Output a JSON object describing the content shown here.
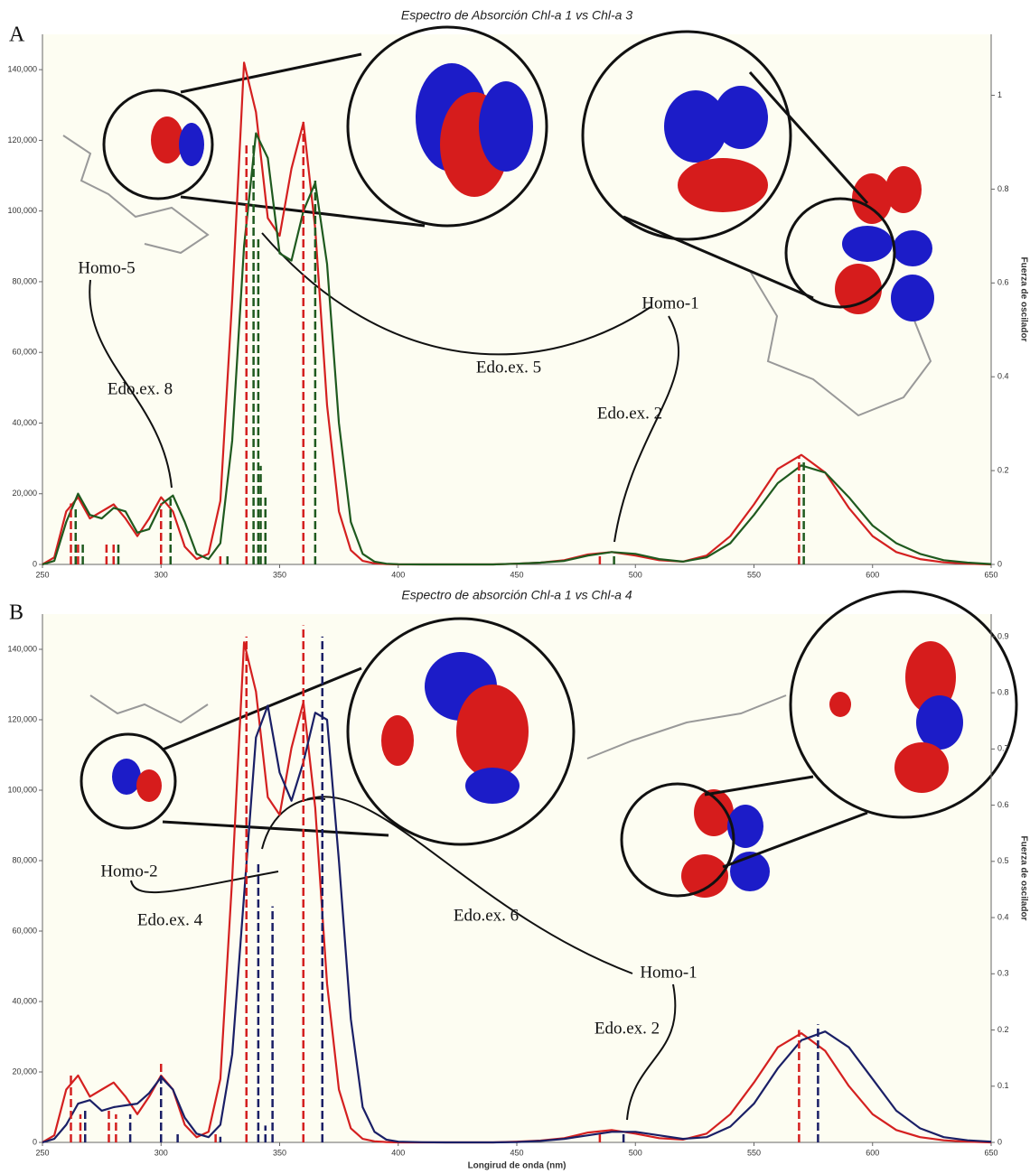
{
  "chart_data": [
    {
      "type": "line",
      "panel": "A",
      "title": "Espectro de Absorción Chl-a 1 vs Chl-a 3",
      "y2label": "Fuerza de oscilador",
      "x": [
        250,
        255,
        260,
        265,
        270,
        275,
        280,
        285,
        290,
        295,
        300,
        305,
        310,
        315,
        320,
        325,
        330,
        335,
        340,
        345,
        350,
        355,
        360,
        365,
        370,
        375,
        380,
        385,
        390,
        395,
        400,
        410,
        420,
        430,
        440,
        450,
        460,
        470,
        480,
        490,
        500,
        510,
        520,
        530,
        540,
        550,
        560,
        570,
        580,
        590,
        600,
        610,
        620,
        630,
        640,
        650
      ],
      "series": [
        {
          "color": "#d42020",
          "values": [
            0,
            2000,
            15000,
            19000,
            13000,
            15000,
            17000,
            13000,
            8000,
            13000,
            19000,
            15000,
            5000,
            1500,
            3000,
            18000,
            75000,
            142000,
            128000,
            98000,
            93000,
            112000,
            125000,
            95000,
            45000,
            15000,
            4000,
            1000,
            300,
            100,
            0,
            0,
            0,
            0,
            0,
            200,
            500,
            1200,
            2800,
            3500,
            2500,
            1200,
            800,
            2500,
            8000,
            17000,
            27000,
            31000,
            26000,
            16000,
            8000,
            3500,
            1500,
            600,
            200,
            0
          ]
        },
        {
          "color": "#1f5a1f",
          "values": [
            0,
            1000,
            12000,
            20000,
            14000,
            13000,
            16000,
            15000,
            9000,
            10000,
            17000,
            19500,
            12000,
            3000,
            1500,
            6000,
            35000,
            90000,
            122000,
            115000,
            88000,
            86000,
            100000,
            108000,
            85000,
            40000,
            12000,
            3000,
            800,
            200,
            50,
            0,
            0,
            0,
            0,
            200,
            500,
            1000,
            2500,
            3500,
            3000,
            1500,
            800,
            2000,
            6000,
            14000,
            23000,
            28000,
            26000,
            19000,
            11000,
            6000,
            3000,
            1200,
            500,
            100
          ]
        },
        {
          "color": "#d42020",
          "axis": "y2",
          "style": "dashed",
          "x": [
            262,
            265,
            277,
            280,
            300,
            325,
            336,
            360,
            485,
            569
          ],
          "values": [
            0.13,
            0.05,
            0.05,
            0.05,
            0.13,
            0.02,
            0.9,
            0.95,
            0.02,
            0.23
          ]
        },
        {
          "color": "#1f5a1f",
          "axis": "y2",
          "style": "dashed",
          "x": [
            264,
            267,
            282,
            304,
            328,
            339,
            341,
            342,
            344,
            365,
            491,
            571
          ],
          "values": [
            0.12,
            0.05,
            0.05,
            0.14,
            0.02,
            0.9,
            0.7,
            0.21,
            0.15,
            0.82,
            0.02,
            0.22
          ]
        }
      ],
      "xlim": [
        250,
        650
      ],
      "xticks": [
        250,
        300,
        350,
        400,
        450,
        500,
        550,
        600,
        650
      ],
      "ylim": [
        0,
        150000
      ],
      "yticks": [
        0,
        {
          "value": 20000,
          "label": "20,000"
        },
        {
          "value": 40000,
          "label": "40,000"
        },
        {
          "value": 60000,
          "label": "60,000"
        },
        {
          "value": 80000,
          "label": "80,000"
        },
        {
          "value": 100000,
          "label": "100,000"
        },
        {
          "value": 120000,
          "label": "120,000"
        },
        {
          "value": 140000,
          "label": "140,000"
        }
      ],
      "y2lim": [
        0,
        1.13
      ],
      "y2ticks": [
        0,
        0.2,
        0.4,
        0.6,
        0.8,
        1
      ],
      "annotations": [
        "Homo-5",
        "Edo.ex. 8",
        "Edo.ex. 5",
        "Homo-1",
        "Edo.ex. 2"
      ]
    },
    {
      "type": "line",
      "panel": "B",
      "title": "Espectro de absorción Chl-a 1 vs Chl-a 4",
      "y2label": "Fuerza de oscilador",
      "xlabel": "Longirud de onda (nm)",
      "x": [
        250,
        255,
        260,
        265,
        270,
        275,
        280,
        285,
        290,
        295,
        300,
        305,
        310,
        315,
        320,
        325,
        330,
        335,
        340,
        345,
        350,
        355,
        360,
        365,
        370,
        375,
        380,
        385,
        390,
        395,
        400,
        410,
        420,
        430,
        440,
        450,
        460,
        470,
        480,
        490,
        500,
        510,
        520,
        530,
        540,
        550,
        560,
        570,
        580,
        590,
        600,
        610,
        620,
        630,
        640,
        650
      ],
      "series": [
        {
          "color": "#d42020",
          "values": [
            0,
            2000,
            15000,
            19000,
            13000,
            15000,
            17000,
            13000,
            8000,
            13000,
            19000,
            15000,
            5000,
            1500,
            3000,
            18000,
            75000,
            142000,
            128000,
            98000,
            93000,
            112000,
            125000,
            95000,
            45000,
            15000,
            4000,
            1000,
            300,
            100,
            0,
            0,
            0,
            0,
            0,
            200,
            500,
            1200,
            2800,
            3500,
            2500,
            1200,
            800,
            2500,
            8000,
            17000,
            27000,
            31000,
            26000,
            16000,
            8000,
            3500,
            1500,
            600,
            200,
            0
          ]
        },
        {
          "color": "#1a1f66",
          "values": [
            0,
            1000,
            5000,
            11000,
            12000,
            9000,
            10000,
            10500,
            11000,
            14000,
            18500,
            15000,
            7000,
            2500,
            1500,
            5000,
            25000,
            70000,
            115000,
            124000,
            105000,
            97000,
            108000,
            122000,
            120000,
            80000,
            35000,
            10000,
            3000,
            800,
            200,
            50,
            0,
            0,
            0,
            100,
            400,
            1000,
            2000,
            3000,
            3000,
            2000,
            1000,
            1500,
            4500,
            11000,
            21000,
            29000,
            31500,
            27000,
            18000,
            9000,
            4000,
            1500,
            600,
            200
          ]
        },
        {
          "color": "#d42020",
          "axis": "y2",
          "style": "dashed",
          "x": [
            262,
            266,
            278,
            281,
            300,
            323,
            336,
            360,
            485,
            569
          ],
          "values": [
            0.12,
            0.05,
            0.06,
            0.05,
            0.14,
            0.02,
            0.9,
            0.92,
            0.02,
            0.2
          ]
        },
        {
          "color": "#1a1f66",
          "axis": "y2",
          "style": "dashed",
          "x": [
            268,
            287,
            300,
            307,
            325,
            341,
            344,
            347,
            368,
            495,
            577
          ],
          "values": [
            0.06,
            0.05,
            0.12,
            0.02,
            0.01,
            0.5,
            0.03,
            0.42,
            0.9,
            0.02,
            0.21
          ]
        }
      ],
      "xlim": [
        250,
        650
      ],
      "xticks": [
        250,
        300,
        350,
        400,
        450,
        500,
        550,
        600,
        650
      ],
      "ylim": [
        0,
        150000
      ],
      "yticks": [
        0,
        {
          "value": 20000,
          "label": "20,000"
        },
        {
          "value": 40000,
          "label": "40,000"
        },
        {
          "value": 60000,
          "label": "60,000"
        },
        {
          "value": 80000,
          "label": "80,000"
        },
        {
          "value": 100000,
          "label": "100,000"
        },
        {
          "value": 120000,
          "label": "120,000"
        },
        {
          "value": 140000,
          "label": "140,000"
        }
      ],
      "y2lim": [
        0,
        0.94
      ],
      "y2ticks": [
        0,
        0.1,
        0.2,
        0.3,
        0.4,
        0.5,
        0.6,
        0.7,
        0.8,
        0.9
      ],
      "annotations": [
        "Homo-2",
        "Edo.ex. 4",
        "Edo.ex. 6",
        "Homo-1",
        "Edo.ex. 2"
      ]
    }
  ]
}
